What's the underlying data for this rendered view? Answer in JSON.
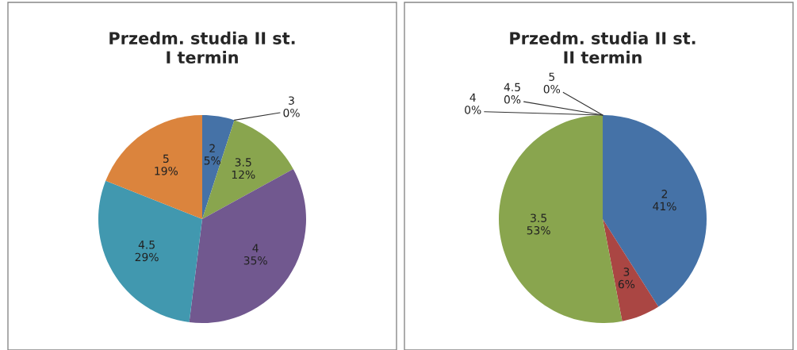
{
  "chart_data": [
    {
      "type": "pie",
      "title": "Przedm. studia II st.\nI termin",
      "categories": [
        "2",
        "3",
        "3.5",
        "4",
        "4.5",
        "5"
      ],
      "values": [
        5,
        0,
        12,
        35,
        29,
        19
      ],
      "colors": [
        "#4572a7",
        "#aa4643",
        "#89a54e",
        "#71588f",
        "#4198af",
        "#db843d"
      ],
      "value_labels": [
        "5%",
        "0%",
        "12%",
        "35%",
        "29%",
        "19%"
      ]
    },
    {
      "type": "pie",
      "title": "Przedm. studia II st.\nII termin",
      "categories": [
        "2",
        "3",
        "3.5",
        "4",
        "4.5",
        "5"
      ],
      "values": [
        41,
        6,
        53,
        0,
        0,
        0
      ],
      "colors": [
        "#4572a7",
        "#aa4643",
        "#89a54e",
        "#71588f",
        "#4198af",
        "#db843d"
      ],
      "value_labels": [
        "41%",
        "6%",
        "53%",
        "0%",
        "0%",
        "0%"
      ]
    }
  ]
}
